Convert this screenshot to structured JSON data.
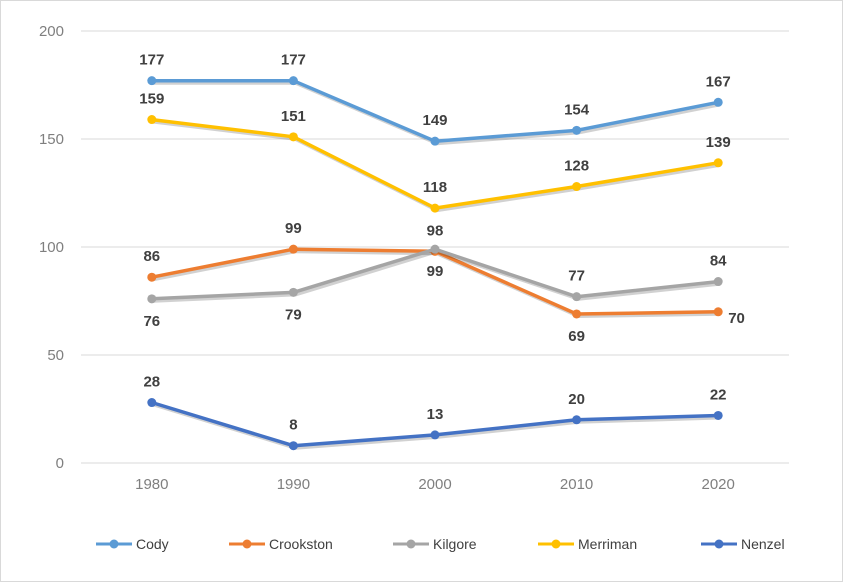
{
  "chart_data": {
    "type": "line",
    "title": "",
    "xlabel": "",
    "ylabel": "",
    "categories": [
      "1980",
      "1990",
      "2000",
      "2010",
      "2020"
    ],
    "ylim": [
      0,
      200
    ],
    "yticks": [
      "0",
      "50",
      "100",
      "150",
      "200"
    ],
    "grid": "horizontal",
    "legend": "bottom",
    "series": [
      {
        "name": "Cody",
        "color": "#5b9bd5",
        "values": [
          177,
          177,
          149,
          154,
          167
        ],
        "labels": [
          "177",
          "177",
          "149",
          "154",
          "167"
        ]
      },
      {
        "name": "Crookston",
        "color": "#ed7d31",
        "values": [
          86,
          99,
          98,
          69,
          70
        ],
        "labels": [
          "86",
          "99",
          "98",
          "69",
          "70"
        ]
      },
      {
        "name": "Kilgore",
        "color": "#a5a5a5",
        "values": [
          76,
          79,
          99,
          77,
          84
        ],
        "labels": [
          "76",
          "79",
          "99",
          "77",
          "84"
        ]
      },
      {
        "name": "Merriman",
        "color": "#ffc000",
        "values": [
          159,
          151,
          118,
          128,
          139
        ],
        "labels": [
          "159",
          "151",
          "118",
          "128",
          "139"
        ]
      },
      {
        "name": "Nenzel",
        "color": "#4472c4",
        "values": [
          28,
          8,
          13,
          20,
          22
        ],
        "labels": [
          "28",
          "8",
          "13",
          "20",
          "22"
        ]
      }
    ]
  }
}
